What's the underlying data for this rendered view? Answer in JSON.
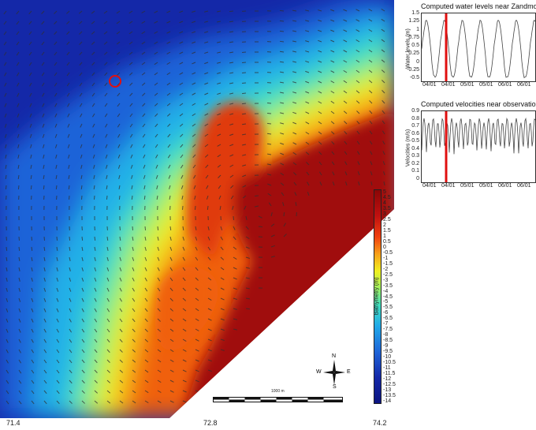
{
  "map": {
    "x_ticks": [
      "71.4",
      "72.8",
      "74.2"
    ],
    "legend_title": "Bathymetry (m)",
    "legend_values": [
      "5",
      "4.5",
      "4",
      "3.5",
      "3",
      "2.5",
      "2",
      "1.5",
      "1",
      "0.5",
      "0",
      "-0.5",
      "-1",
      "-1.5",
      "-2",
      "-2.5",
      "-3",
      "-3.5",
      "-4",
      "-4.5",
      "-5",
      "-5.5",
      "-6",
      "-6.5",
      "-7",
      "-7.5",
      "-8",
      "-8.5",
      "-9",
      "-9.5",
      "-10",
      "-10.5",
      "-11",
      "-11.5",
      "-12",
      "-12.5",
      "-13",
      "-13.5",
      "-14"
    ],
    "scale_label": "1000 m",
    "compass": {
      "n": "N",
      "s": "S",
      "e": "E",
      "w": "W"
    },
    "colors": {
      "deep": "#1020a0",
      "mid": "#20a8e8",
      "shallow": "#f0f020",
      "land": "#a00808",
      "marker": "#e01010"
    }
  },
  "panels": [
    {
      "title": "Computed water levels near Zandmot",
      "ylabel": "Water levels (m)",
      "y_ticks": [
        "1.5",
        "1.25",
        "1",
        "0.75",
        "0.5",
        "0.25",
        "0",
        "-0.25",
        "-0.5"
      ],
      "x_ticks": [
        "04/01",
        "04/01",
        "05/01",
        "05/01",
        "06/01",
        "06/01"
      ]
    },
    {
      "title": "Computed velocities near observation p",
      "ylabel": "Velocities (m/s)",
      "y_ticks": [
        "0.9",
        "0.8",
        "0.7",
        "0.6",
        "0.5",
        "0.4",
        "0.3",
        "0.2",
        "0.1",
        "0"
      ],
      "x_ticks": [
        "04/01",
        "04/01",
        "05/01",
        "05/01",
        "06/01",
        "06/01"
      ]
    }
  ]
}
